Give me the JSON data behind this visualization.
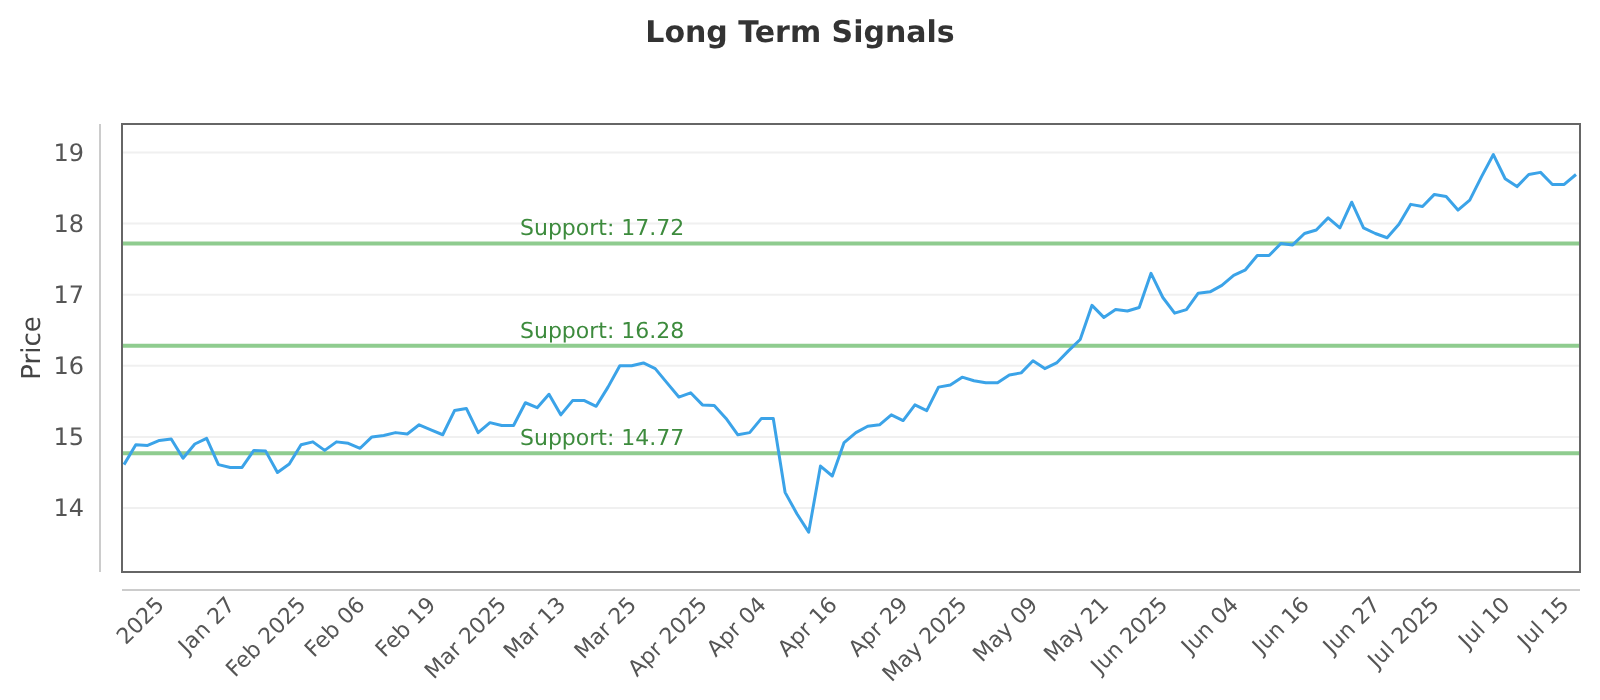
{
  "chart_data": {
    "type": "line",
    "title": "Long Term Signals",
    "ylabel": "Price",
    "categories": [
      null,
      null,
      null,
      "2025",
      null,
      null,
      null,
      null,
      null,
      "Jan 27",
      null,
      null,
      null,
      null,
      null,
      "Feb 2025",
      null,
      null,
      null,
      null,
      "Feb 06",
      null,
      null,
      null,
      null,
      null,
      "Feb 19",
      null,
      null,
      null,
      null,
      null,
      "Mar 2025",
      null,
      null,
      null,
      null,
      "Mar 13",
      null,
      null,
      null,
      null,
      null,
      "Mar 25",
      null,
      null,
      null,
      null,
      null,
      "Apr 2025",
      null,
      null,
      null,
      null,
      "Apr 04",
      null,
      null,
      null,
      null,
      null,
      "Apr 16",
      null,
      null,
      null,
      null,
      null,
      "Apr 29",
      null,
      null,
      null,
      null,
      "May 2025",
      null,
      null,
      null,
      null,
      null,
      "May 09",
      null,
      null,
      null,
      null,
      null,
      "May 21",
      null,
      null,
      null,
      null,
      "Jun 2025",
      null,
      null,
      null,
      null,
      null,
      "Jun 04",
      null,
      null,
      null,
      null,
      null,
      "Jun 16",
      null,
      null,
      null,
      null,
      null,
      "Jun 27",
      null,
      null,
      null,
      null,
      "Jul 2025",
      null,
      null,
      null,
      null,
      null,
      "Jul 10",
      null,
      null,
      null,
      null,
      "Jul 15",
      null
    ],
    "series": [
      {
        "color": "#3ba3e8",
        "values": [
          14.61,
          14.89,
          14.88,
          14.95,
          14.97,
          14.7,
          14.9,
          14.98,
          14.61,
          14.57,
          14.57,
          14.81,
          14.8,
          14.5,
          14.62,
          14.89,
          14.93,
          14.81,
          14.93,
          14.91,
          14.84,
          15.0,
          15.02,
          15.06,
          15.04,
          15.17,
          15.1,
          15.03,
          15.37,
          15.4,
          15.06,
          15.2,
          15.16,
          15.16,
          15.48,
          15.41,
          15.6,
          15.31,
          15.51,
          15.51,
          15.43,
          15.7,
          16.0,
          16.0,
          16.04,
          15.96,
          15.76,
          15.56,
          15.62,
          15.45,
          15.44,
          15.26,
          15.03,
          15.06,
          15.26,
          15.26,
          14.22,
          13.92,
          13.66,
          14.59,
          14.45,
          14.92,
          15.06,
          15.15,
          15.17,
          15.31,
          15.23,
          15.45,
          15.37,
          15.7,
          15.73,
          15.84,
          15.79,
          15.76,
          15.76,
          15.87,
          15.9,
          16.07,
          15.96,
          16.04,
          16.21,
          16.37,
          16.85,
          16.68,
          16.79,
          16.77,
          16.82,
          17.3,
          16.96,
          16.74,
          16.79,
          17.02,
          17.04,
          17.13,
          17.27,
          17.35,
          17.55,
          17.55,
          17.72,
          17.7,
          17.86,
          17.91,
          18.08,
          17.94,
          18.3,
          17.94,
          17.86,
          17.8,
          17.99,
          18.27,
          18.24,
          18.41,
          18.38,
          18.19,
          18.33,
          18.66,
          18.97,
          18.63,
          18.52,
          18.69,
          18.72,
          18.55,
          18.55,
          18.69
        ]
      }
    ],
    "ylim": [
      13.1,
      19.4
    ],
    "yticks": [
      14,
      15,
      16,
      17,
      18,
      19
    ],
    "grid": "y",
    "marker": "none",
    "line_style": "solid",
    "ref_lines": [
      {
        "axis": "y",
        "value": 17.72,
        "label": "Support: 17.72",
        "color": "#8fcc8f"
      },
      {
        "axis": "y",
        "value": 16.28,
        "label": "Support: 16.28",
        "color": "#8fcc8f"
      },
      {
        "axis": "y",
        "value": 14.77,
        "label": "Support: 14.77",
        "color": "#8fcc8f"
      }
    ]
  }
}
